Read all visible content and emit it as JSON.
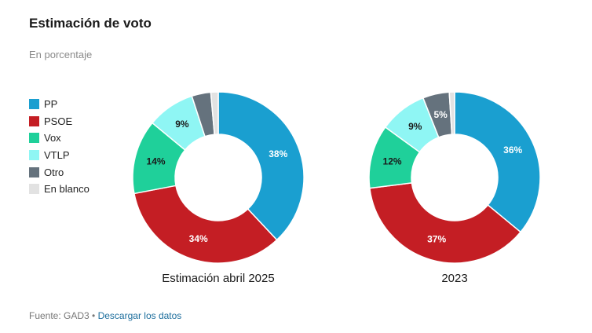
{
  "header": {
    "title": "Estimación de voto",
    "subtitle": "En porcentaje"
  },
  "legend": [
    {
      "label": "PP",
      "color": "#1a9fd0"
    },
    {
      "label": "PSOE",
      "color": "#c41e24"
    },
    {
      "label": "Vox",
      "color": "#1fd09a"
    },
    {
      "label": "VTLP",
      "color": "#8ff6f4"
    },
    {
      "label": "Otro",
      "color": "#65727d"
    },
    {
      "label": "En blanco",
      "color": "#e2e2e2"
    }
  ],
  "chart_data": [
    {
      "type": "pie",
      "label": "Estimación abril 2025",
      "categories": [
        "PP",
        "PSOE",
        "Vox",
        "VTLP",
        "Otro",
        "En blanco"
      ],
      "values": [
        38,
        34,
        14,
        9,
        3.6,
        1.4
      ],
      "data_labels": [
        "38%",
        "34%",
        "14%",
        "9%",
        "",
        ""
      ]
    },
    {
      "type": "pie",
      "label": "2023",
      "categories": [
        "PP",
        "PSOE",
        "Vox",
        "VTLP",
        "Otro",
        "En blanco"
      ],
      "values": [
        36,
        37,
        12,
        9,
        5,
        1
      ],
      "data_labels": [
        "36%",
        "37%",
        "12%",
        "9%",
        "5%",
        ""
      ]
    }
  ],
  "footer": {
    "source": "Fuente: GAD3 •",
    "link": "Descargar los datos"
  }
}
